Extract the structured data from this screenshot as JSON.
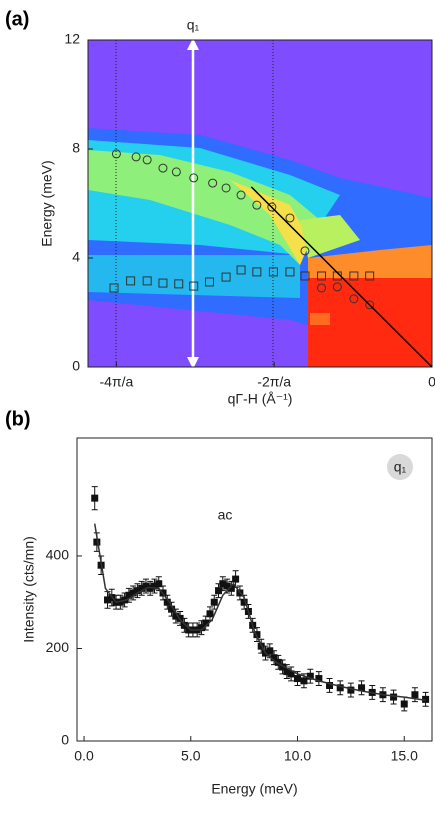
{
  "chart_data": [
    {
      "type": "scatter",
      "panel_label": "(a)",
      "annotation": "q₁",
      "y_label": "Energy (meV)",
      "x_label": "qΓ-H (Å⁻¹)",
      "xlim": [
        -4.36,
        0
      ],
      "ylim": [
        0,
        12
      ],
      "xticks": [
        {
          "value": -4,
          "label": "-4π/a"
        },
        {
          "value": -2,
          "label": "-2π/a"
        },
        0
      ],
      "yticks": [
        0,
        4,
        8,
        12
      ],
      "series": [
        {
          "marker": "circle",
          "color": "#333333",
          "x": [
            -4.0,
            -3.75,
            -3.61,
            -3.41,
            -3.24,
            -3.02,
            -2.78,
            -2.61,
            -2.42,
            -2.22,
            -2.03,
            -1.8,
            -1.61,
            -1.4,
            -1.2,
            -0.99,
            -0.79
          ],
          "values": [
            7.82,
            7.71,
            7.6,
            7.3,
            7.16,
            6.94,
            6.75,
            6.57,
            6.31,
            5.94,
            5.87,
            5.47,
            4.26,
            2.9,
            2.94,
            2.5,
            2.28
          ]
        },
        {
          "marker": "square",
          "color": "#333333",
          "x": [
            -4.03,
            -3.82,
            -3.61,
            -3.41,
            -3.21,
            -3.02,
            -2.82,
            -2.61,
            -2.42,
            -2.22,
            -2.01,
            -1.8,
            -1.61,
            -1.4,
            -1.2,
            -0.99,
            -0.79
          ],
          "values": [
            2.9,
            3.16,
            3.16,
            3.08,
            3.05,
            2.97,
            3.12,
            3.3,
            3.56,
            3.49,
            3.49,
            3.49,
            3.34,
            3.34,
            3.34,
            3.34,
            3.34
          ]
        },
        {
          "marker": "line",
          "color": "#000000",
          "x": [
            -2.29,
            0
          ],
          "values": [
            6.61,
            0
          ]
        }
      ]
    },
    {
      "type": "scatter",
      "panel_label": "(b)",
      "annotations": [
        "ac",
        "q₁"
      ],
      "y_label": "Intensity (cts/mn)",
      "x_label": "Energy (meV)",
      "xlim": [
        -0.33,
        16.3
      ],
      "ylim": [
        0,
        655
      ],
      "xticks": [
        {
          "value": 0,
          "label": "0.0"
        },
        {
          "value": 5,
          "label": "5.0"
        },
        {
          "value": 10,
          "label": "10.0"
        },
        {
          "value": 15,
          "label": "15.0"
        }
      ],
      "yticks": [
        0,
        200,
        400
      ],
      "series": [
        {
          "marker": "square",
          "color": "#111111",
          "x": [
            0.5,
            0.6,
            0.8,
            1.1,
            1.3,
            1.5,
            1.7,
            1.9,
            2.1,
            2.3,
            2.5,
            2.7,
            2.9,
            3.1,
            3.3,
            3.5,
            3.7,
            3.9,
            4.1,
            4.3,
            4.5,
            4.7,
            4.9,
            5.1,
            5.3,
            5.5,
            5.7,
            5.9,
            6.1,
            6.3,
            6.5,
            6.7,
            6.9,
            7.1,
            7.3,
            7.5,
            7.7,
            7.9,
            8.1,
            8.3,
            8.5,
            8.7,
            8.9,
            9.1,
            9.3,
            9.5,
            9.7,
            10.0,
            10.3,
            10.6,
            11.0,
            11.5,
            12.0,
            12.5,
            13.0,
            13.5,
            14.0,
            14.5,
            15.0,
            15.5,
            16.0
          ],
          "values": [
            525,
            430,
            380,
            305,
            310,
            300,
            300,
            305,
            315,
            320,
            325,
            330,
            335,
            330,
            335,
            340,
            320,
            300,
            285,
            270,
            265,
            250,
            240,
            240,
            240,
            245,
            255,
            275,
            300,
            325,
            340,
            335,
            330,
            350,
            320,
            300,
            280,
            250,
            230,
            205,
            190,
            195,
            180,
            170,
            160,
            150,
            145,
            135,
            130,
            140,
            135,
            120,
            115,
            110,
            115,
            105,
            100,
            95,
            80,
            100,
            90
          ],
          "errors": [
            25,
            20,
            20,
            18,
            18,
            15,
            15,
            15,
            15,
            15,
            15,
            15,
            15,
            15,
            15,
            15,
            15,
            15,
            15,
            15,
            15,
            15,
            15,
            15,
            15,
            15,
            15,
            15,
            15,
            15,
            15,
            15,
            15,
            18,
            15,
            15,
            15,
            15,
            15,
            15,
            15,
            15,
            15,
            15,
            15,
            15,
            15,
            15,
            15,
            15,
            15,
            15,
            15,
            15,
            15,
            15,
            15,
            15,
            15,
            15,
            15
          ]
        },
        {
          "marker": "line",
          "color": "#333333",
          "x": [
            0.5,
            1,
            1.5,
            2,
            2.5,
            3,
            3.5,
            4,
            4.5,
            5,
            5.5,
            6,
            6.5,
            7,
            7.5,
            8,
            8.5,
            9,
            10,
            11,
            12,
            13,
            14,
            15,
            16
          ],
          "values": [
            470,
            330,
            300,
            305,
            320,
            332,
            330,
            300,
            262,
            240,
            240,
            262,
            315,
            340,
            310,
            235,
            190,
            170,
            145,
            130,
            118,
            108,
            100,
            95,
            88
          ]
        }
      ]
    }
  ]
}
